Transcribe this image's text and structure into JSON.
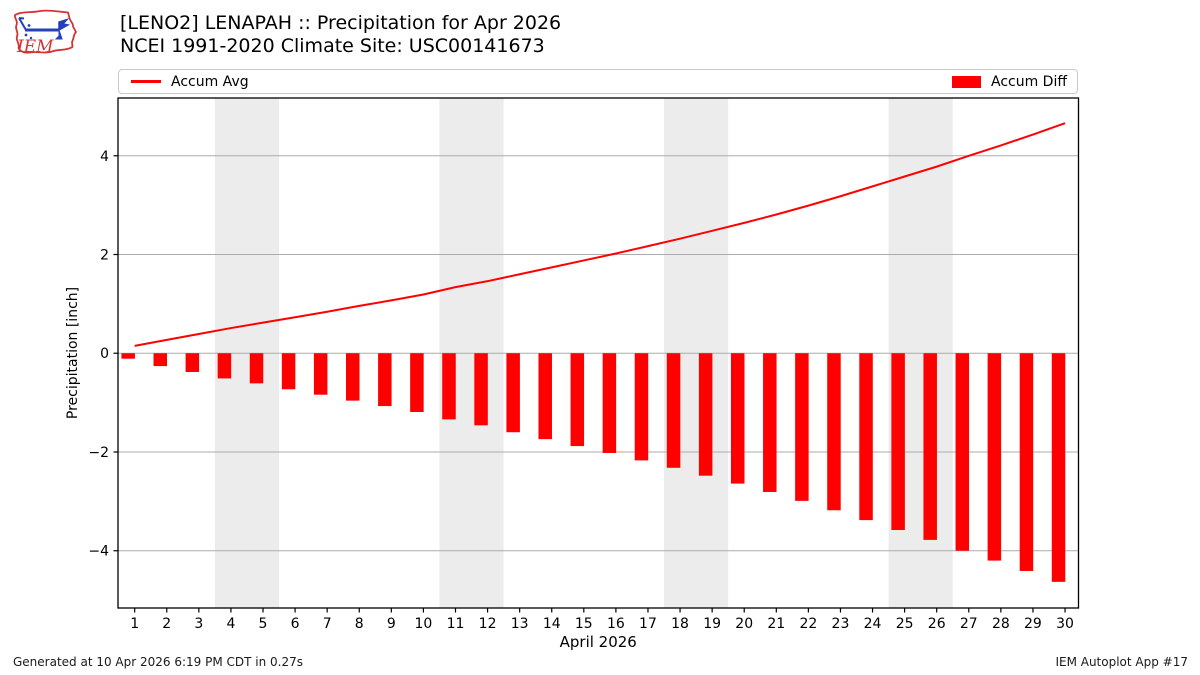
{
  "header": {
    "title_line1": "[LENO2] LENAPAH :: Precipitation for Apr 2026",
    "title_line2": "NCEI 1991-2020 Climate Site: USC00141673",
    "logo_text": "IEM"
  },
  "legend": {
    "avg_label": "Accum Avg",
    "diff_label": "Accum Diff"
  },
  "footer": {
    "left": "Generated at 10 Apr 2026 6:19 PM CDT in 0.27s",
    "right": "IEM Autoplot App #17"
  },
  "colors": {
    "series_red": "#ff0000",
    "weekend_band": "#ececec",
    "grid": "#ababab",
    "frame": "#000000",
    "tick_text": "#000000",
    "logo_red": "#d63333",
    "logo_blue": "#2540b8"
  },
  "chart_data": {
    "type": "line+bar",
    "title": "[LENO2] LENAPAH :: Precipitation for Apr 2026",
    "subtitle": "NCEI 1991-2020 Climate Site: USC00141673",
    "xlabel": "April 2026",
    "ylabel": "Precipitation [inch]",
    "x_days": [
      1,
      2,
      3,
      4,
      5,
      6,
      7,
      8,
      9,
      10,
      11,
      12,
      13,
      14,
      15,
      16,
      17,
      18,
      19,
      20,
      21,
      22,
      23,
      24,
      25,
      26,
      27,
      28,
      29,
      30
    ],
    "series": [
      {
        "name": "Accum Avg",
        "type": "line",
        "color": "#ff0000",
        "values": [
          0.15,
          0.27,
          0.39,
          0.51,
          0.62,
          0.73,
          0.84,
          0.96,
          1.07,
          1.19,
          1.34,
          1.46,
          1.6,
          1.74,
          1.88,
          2.02,
          2.17,
          2.32,
          2.48,
          2.64,
          2.81,
          2.99,
          3.18,
          3.38,
          3.58,
          3.78,
          4.0,
          4.21,
          4.43,
          4.66
        ]
      },
      {
        "name": "Accum Diff",
        "type": "bar",
        "color": "#ff0000",
        "values": [
          -0.11,
          -0.26,
          -0.38,
          -0.51,
          -0.61,
          -0.73,
          -0.84,
          -0.96,
          -1.07,
          -1.19,
          -1.34,
          -1.46,
          -1.6,
          -1.74,
          -1.88,
          -2.02,
          -2.17,
          -2.32,
          -2.48,
          -2.64,
          -2.81,
          -2.99,
          -3.18,
          -3.38,
          -3.58,
          -3.78,
          -4.0,
          -4.2,
          -4.41,
          -4.63
        ]
      }
    ],
    "xlim": [
      0.48,
      30.42
    ],
    "ylim": [
      -5.16,
      5.17
    ],
    "yticks": [
      -4,
      -2,
      0,
      2,
      4
    ],
    "weekend_bands": [
      [
        3.5,
        5.5
      ],
      [
        10.5,
        12.5
      ],
      [
        17.5,
        19.5
      ],
      [
        24.5,
        26.5
      ]
    ],
    "grid": "horizontal-only",
    "legend_position": "top-full-width"
  }
}
